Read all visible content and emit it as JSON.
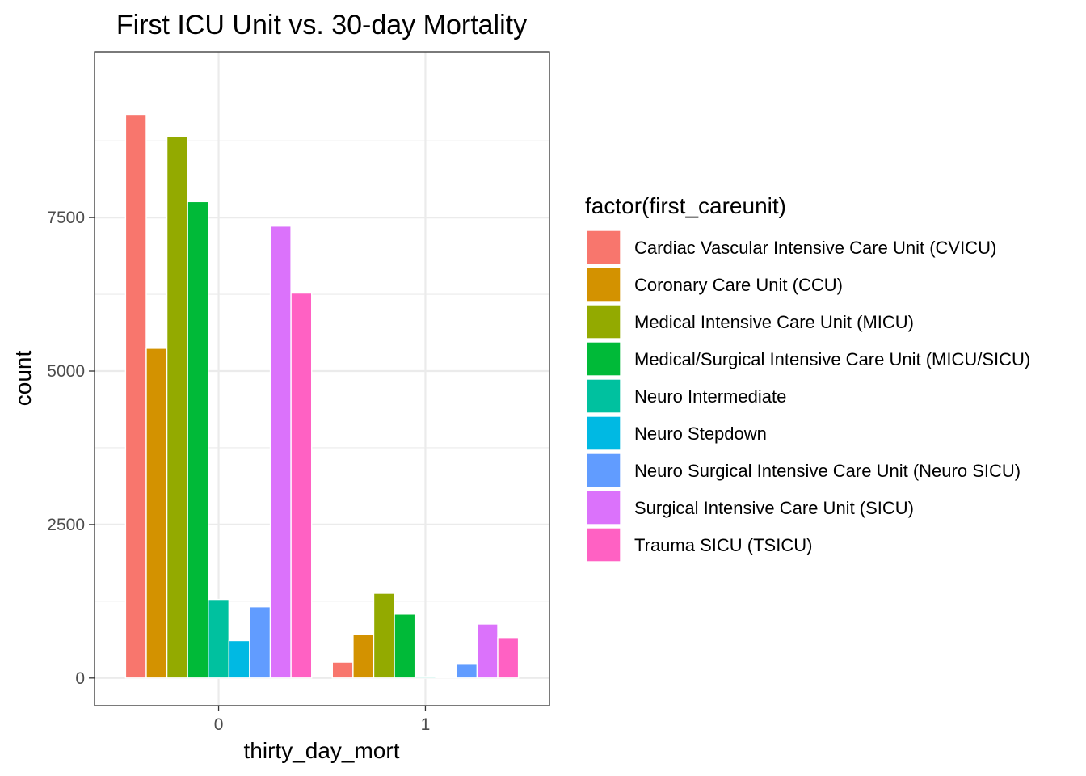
{
  "chart_data": {
    "type": "bar",
    "title": "First ICU Unit vs. 30-day Mortality",
    "xlabel": "thirty_day_mort",
    "ylabel": "count",
    "categories": [
      "0",
      "1"
    ],
    "ylim": [
      -450,
      10200
    ],
    "yticks": [
      0,
      2500,
      5000,
      7500
    ],
    "grid": true,
    "legend": {
      "title": "factor(first_careunit)",
      "placement": "right"
    },
    "series": [
      {
        "name": "Cardiac Vascular Intensive Care Unit (CVICU)",
        "color": "#F8766D",
        "values": [
          9180,
          260
        ]
      },
      {
        "name": "Coronary Care Unit (CCU)",
        "color": "#D39200",
        "values": [
          5370,
          710
        ]
      },
      {
        "name": "Medical Intensive Care Unit (MICU)",
        "color": "#93AA00",
        "values": [
          8820,
          1380
        ]
      },
      {
        "name": "Medical/Surgical Intensive Care Unit (MICU/SICU)",
        "color": "#00BA38",
        "values": [
          7760,
          1040
        ]
      },
      {
        "name": "Neuro Intermediate",
        "color": "#00C19F",
        "values": [
          1280,
          25
        ]
      },
      {
        "name": "Neuro Stepdown",
        "color": "#00B9E3",
        "values": [
          610,
          10
        ]
      },
      {
        "name": "Neuro Surgical Intensive Care Unit (Neuro SICU)",
        "color": "#619CFF",
        "values": [
          1160,
          225
        ]
      },
      {
        "name": "Surgical Intensive Care Unit (SICU)",
        "color": "#DB72FB",
        "values": [
          7360,
          880
        ]
      },
      {
        "name": "Trauma SICU (TSICU)",
        "color": "#FF61C3",
        "values": [
          6270,
          660
        ]
      }
    ]
  }
}
